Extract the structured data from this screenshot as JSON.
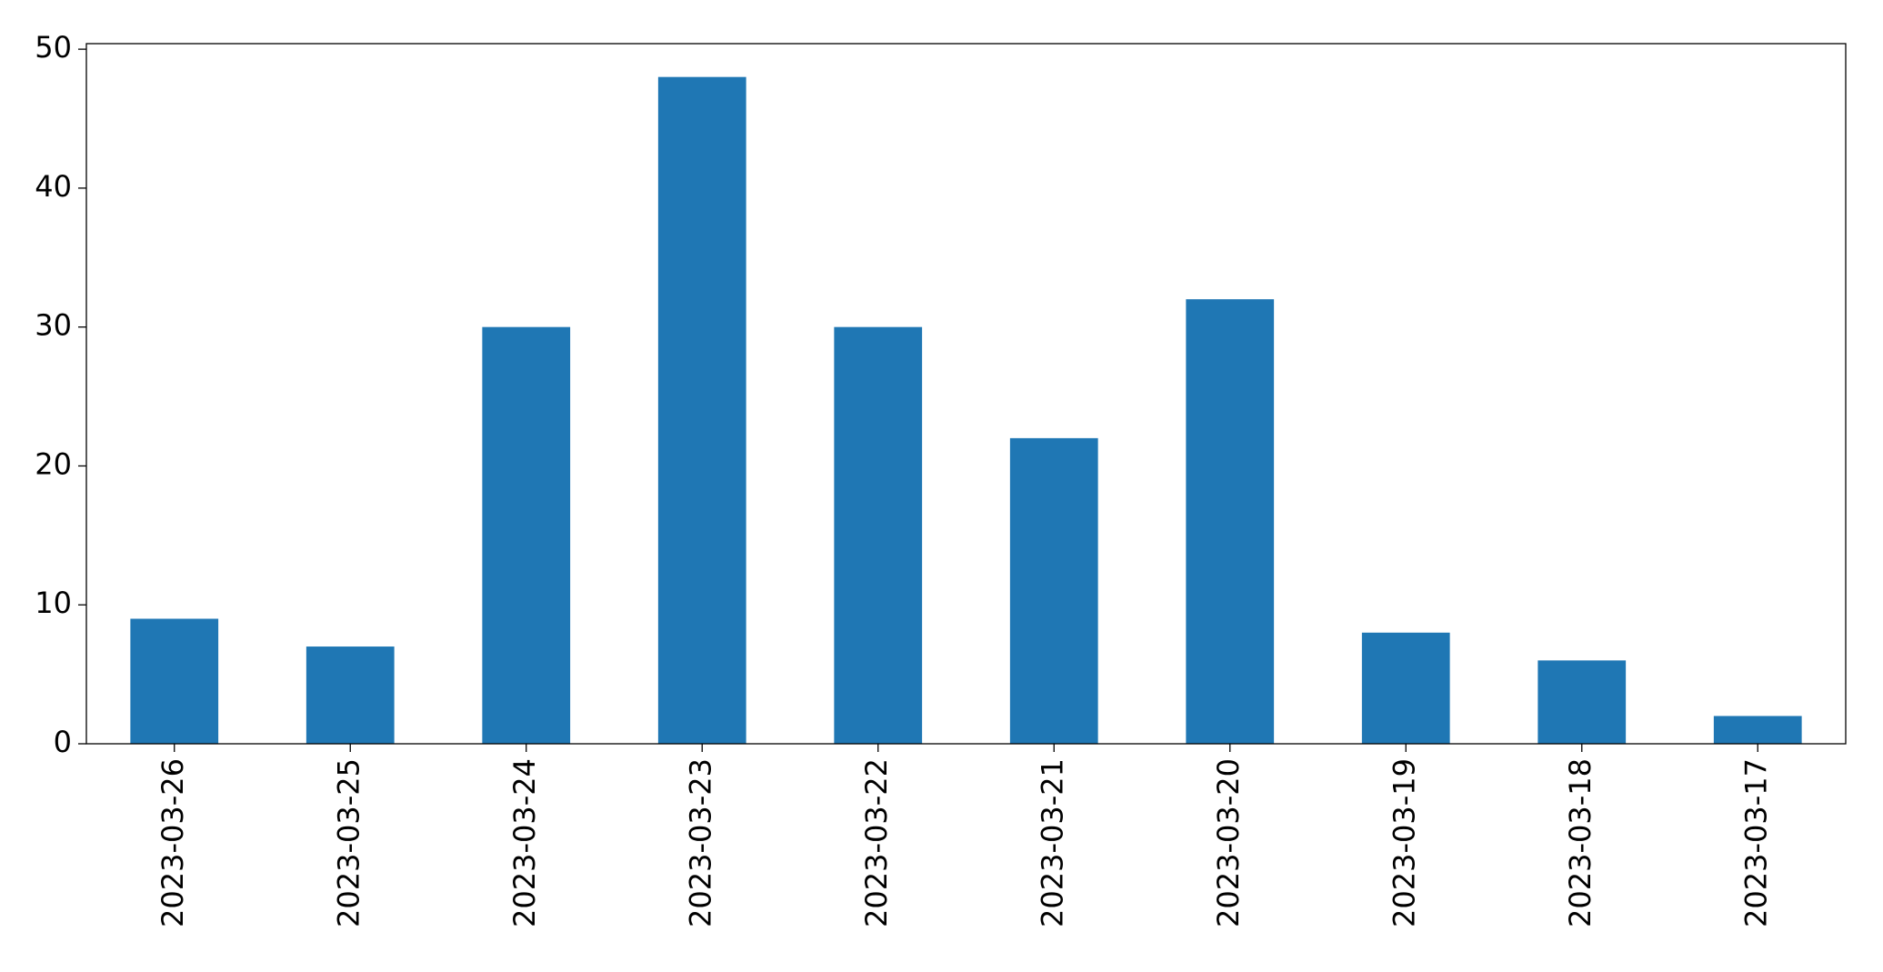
{
  "chart_data": {
    "type": "bar",
    "categories": [
      "2023-03-26",
      "2023-03-25",
      "2023-03-24",
      "2023-03-23",
      "2023-03-22",
      "2023-03-21",
      "2023-03-20",
      "2023-03-19",
      "2023-03-18",
      "2023-03-17"
    ],
    "values": [
      9,
      7,
      30,
      48,
      30,
      22,
      32,
      8,
      6,
      2
    ],
    "color": "#1f77b4",
    "ylim": [
      0,
      50.4
    ],
    "yticks": [
      0,
      10,
      20,
      30,
      40,
      50
    ],
    "grid": false
  }
}
